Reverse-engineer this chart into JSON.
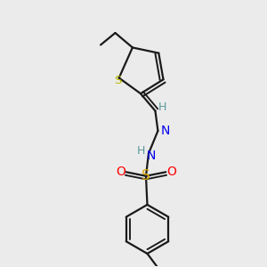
{
  "background_color": "#ebebeb",
  "colors": {
    "C": "#1a1a1a",
    "H": "#5a9a9a",
    "N": "#0000ee",
    "O": "#ff0000",
    "S_thio": "#bbbb00",
    "S_sulfo": "#ddaa00",
    "bond": "#1a1a1a"
  },
  "figsize": [
    3.0,
    3.0
  ],
  "dpi": 100
}
